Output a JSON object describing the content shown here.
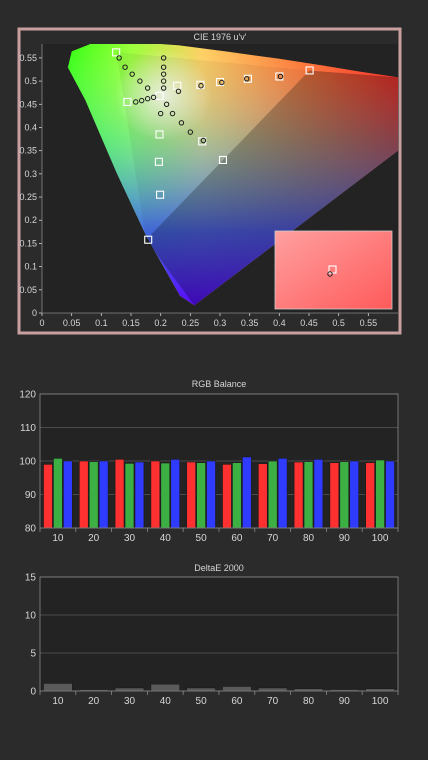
{
  "colors": {
    "background": "#2b2b2b",
    "gamut_frame": "#c9a0a0",
    "plot_bg": "#232323",
    "axis_text": "#d6d6d6",
    "grid": "#5a5a5a",
    "red_bar": "#ff3030",
    "green_bar": "#3cb043",
    "blue_bar": "#2f3cff",
    "de_bar": "#5a5a5a",
    "zoom_inset": "#ff8080"
  },
  "chart_data": [
    {
      "type": "scatter",
      "title": "CIE 1976 u'v'",
      "xlim": [
        0,
        0.6
      ],
      "ylim": [
        0,
        0.58
      ],
      "xticks": [
        "0",
        "0.05",
        "0.1",
        "0.15",
        "0.2",
        "0.25",
        "0.3",
        "0.35",
        "0.4",
        "0.45",
        "0.5",
        "0.55"
      ],
      "yticks": [
        "0",
        "0.05",
        "0.1",
        "0.15",
        "0.2",
        "0.25",
        "0.3",
        "0.35",
        "0.4",
        "0.45",
        "0.5",
        "0.55"
      ],
      "series": [
        {
          "marker": "square",
          "points": [
            {
              "x": 0.125,
              "y": 0.562
            },
            {
              "x": 0.144,
              "y": 0.455
            },
            {
              "x": 0.198,
              "y": 0.468
            },
            {
              "x": 0.228,
              "y": 0.49
            },
            {
              "x": 0.267,
              "y": 0.492
            },
            {
              "x": 0.3,
              "y": 0.498
            },
            {
              "x": 0.347,
              "y": 0.505
            },
            {
              "x": 0.4,
              "y": 0.51
            },
            {
              "x": 0.451,
              "y": 0.523
            },
            {
              "x": 0.198,
              "y": 0.385
            },
            {
              "x": 0.197,
              "y": 0.326
            },
            {
              "x": 0.199,
              "y": 0.255
            },
            {
              "x": 0.179,
              "y": 0.158
            },
            {
              "x": 0.27,
              "y": 0.37
            },
            {
              "x": 0.305,
              "y": 0.33
            }
          ]
        },
        {
          "marker": "circle",
          "points": [
            {
              "x": 0.13,
              "y": 0.55
            },
            {
              "x": 0.14,
              "y": 0.53
            },
            {
              "x": 0.152,
              "y": 0.515
            },
            {
              "x": 0.165,
              "y": 0.5
            },
            {
              "x": 0.178,
              "y": 0.485
            },
            {
              "x": 0.205,
              "y": 0.55
            },
            {
              "x": 0.205,
              "y": 0.53
            },
            {
              "x": 0.205,
              "y": 0.515
            },
            {
              "x": 0.205,
              "y": 0.5
            },
            {
              "x": 0.205,
              "y": 0.485
            },
            {
              "x": 0.158,
              "y": 0.455
            },
            {
              "x": 0.168,
              "y": 0.458
            },
            {
              "x": 0.178,
              "y": 0.462
            },
            {
              "x": 0.188,
              "y": 0.465
            },
            {
              "x": 0.21,
              "y": 0.45
            },
            {
              "x": 0.22,
              "y": 0.43
            },
            {
              "x": 0.235,
              "y": 0.41
            },
            {
              "x": 0.25,
              "y": 0.39
            },
            {
              "x": 0.272,
              "y": 0.372
            },
            {
              "x": 0.2,
              "y": 0.43
            },
            {
              "x": 0.23,
              "y": 0.478
            },
            {
              "x": 0.268,
              "y": 0.49
            },
            {
              "x": 0.303,
              "y": 0.497
            },
            {
              "x": 0.345,
              "y": 0.505
            },
            {
              "x": 0.402,
              "y": 0.51
            }
          ]
        }
      ]
    },
    {
      "type": "bar",
      "title": "RGB Balance",
      "categories": [
        "10",
        "20",
        "30",
        "40",
        "50",
        "60",
        "70",
        "80",
        "90",
        "100"
      ],
      "ylim": [
        80,
        120
      ],
      "yticks": [
        "80",
        "90",
        "100",
        "110",
        "120"
      ],
      "series": [
        {
          "color": "#ff3030",
          "values": [
            99.0,
            100.0,
            100.5,
            100.0,
            99.7,
            99.0,
            99.2,
            99.7,
            99.5,
            99.5
          ]
        },
        {
          "color": "#3cb043",
          "values": [
            100.8,
            99.8,
            99.3,
            99.4,
            99.5,
            99.5,
            100.0,
            99.8,
            99.8,
            100.3
          ]
        },
        {
          "color": "#2f3cff",
          "values": [
            100.0,
            100.0,
            99.7,
            100.5,
            100.0,
            101.2,
            100.8,
            100.5,
            100.0,
            100.0
          ]
        }
      ]
    },
    {
      "type": "bar",
      "title": "DeltaE 2000",
      "categories": [
        "10",
        "20",
        "30",
        "40",
        "50",
        "60",
        "70",
        "80",
        "90",
        "100"
      ],
      "ylim": [
        0,
        15
      ],
      "yticks": [
        "0",
        "5",
        "10",
        "15"
      ],
      "series": [
        {
          "color": "#5a5a5a",
          "values": [
            1.0,
            0.2,
            0.4,
            0.9,
            0.4,
            0.6,
            0.4,
            0.3,
            0.2,
            0.3
          ]
        }
      ]
    }
  ]
}
